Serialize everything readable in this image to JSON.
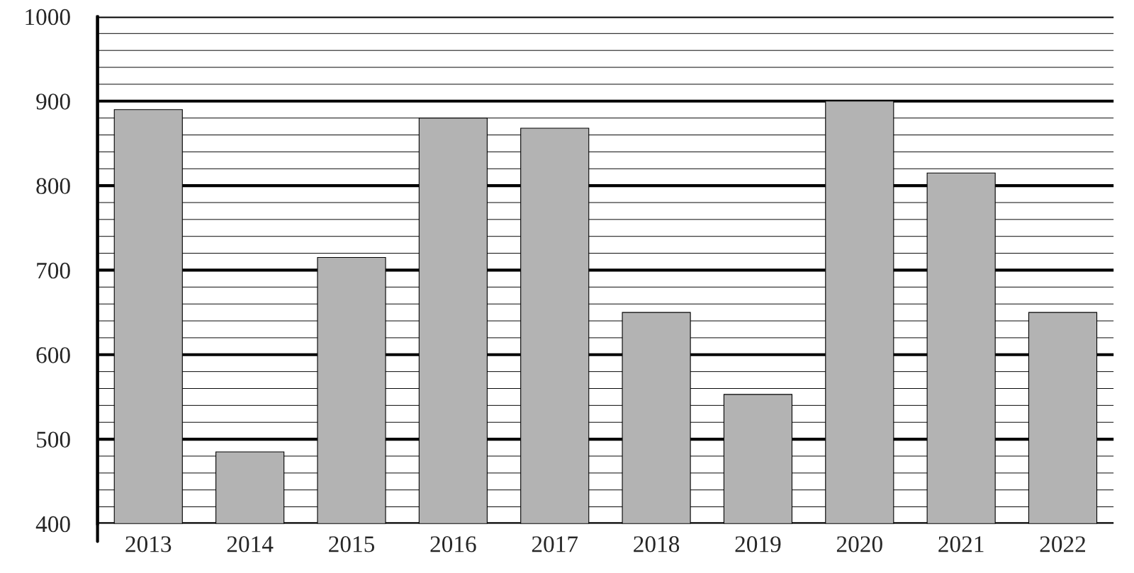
{
  "chart_data": {
    "type": "bar",
    "categories": [
      "2013",
      "2014",
      "2015",
      "2016",
      "2017",
      "2018",
      "2019",
      "2020",
      "2021",
      "2022"
    ],
    "values": [
      890,
      485,
      715,
      880,
      868,
      650,
      553,
      900,
      815,
      650
    ],
    "color": "#b3b3b3",
    "ylim": [
      400,
      1000
    ],
    "yticks": [
      400,
      {
        "value": 420,
        "label": null
      },
      {
        "value": 440,
        "label": null
      },
      {
        "value": 460,
        "label": null
      },
      {
        "value": 480,
        "label": null
      },
      500,
      {
        "value": 520,
        "label": null
      },
      {
        "value": 540,
        "label": null
      },
      {
        "value": 560,
        "label": null
      },
      {
        "value": 580,
        "label": null
      },
      600,
      {
        "value": 620,
        "label": null
      },
      {
        "value": 640,
        "label": null
      },
      {
        "value": 660,
        "label": null
      },
      {
        "value": 680,
        "label": null
      },
      700,
      {
        "value": 720,
        "label": null
      },
      {
        "value": 740,
        "label": null
      },
      {
        "value": 760,
        "label": null
      },
      {
        "value": 780,
        "label": null
      },
      800,
      {
        "value": 820,
        "label": null
      },
      {
        "value": 840,
        "label": null
      },
      {
        "value": 860,
        "label": null
      },
      {
        "value": 880,
        "label": null
      },
      900,
      {
        "value": 920,
        "label": null
      },
      {
        "value": 940,
        "label": null
      },
      {
        "value": 960,
        "label": null
      },
      {
        "value": 980,
        "label": null
      },
      1000
    ],
    "grid": "y"
  }
}
